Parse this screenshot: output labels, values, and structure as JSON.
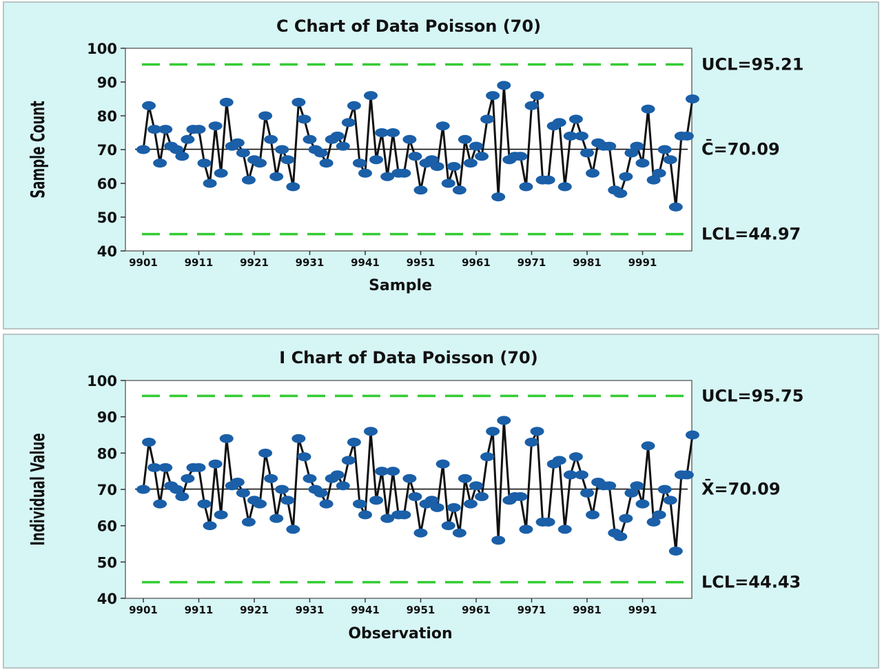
{
  "chart_data": [
    {
      "type": "line",
      "title": "C Chart of Data Poisson (70)",
      "xlabel": "Sample",
      "ylabel": "Sample Count",
      "x_tick_labels": [
        "9901",
        "9911",
        "9921",
        "9931",
        "9941",
        "9951",
        "9961",
        "9971",
        "9981",
        "9991"
      ],
      "x_start": 9901,
      "ylim": [
        40,
        100
      ],
      "y_ticks": [
        40,
        50,
        60,
        70,
        80,
        90,
        100
      ],
      "center_label": "C̄=70.09",
      "center": 70.09,
      "ucl_label": "UCL=95.21",
      "ucl": 95.21,
      "lcl_label": "LCL=44.97",
      "lcl": 44.97,
      "series": [
        {
          "values": [
            70,
            83,
            76,
            66,
            76,
            71,
            70,
            68,
            73,
            76,
            76,
            66,
            60,
            77,
            63,
            84,
            71,
            72,
            69,
            61,
            67,
            66,
            80,
            73,
            62,
            70,
            67,
            59,
            84,
            79,
            73,
            70,
            69,
            66,
            73,
            74,
            71,
            78,
            83,
            66,
            63,
            86,
            67,
            75,
            62,
            75,
            63,
            63,
            73,
            68,
            58,
            66,
            67,
            65,
            77,
            60,
            65,
            58,
            73,
            66,
            71,
            68,
            79,
            86,
            56,
            89,
            67,
            68,
            68,
            59,
            83,
            86,
            61,
            61,
            77,
            78,
            59,
            74,
            79,
            74,
            69,
            63,
            72,
            71,
            71,
            58,
            57,
            62,
            69,
            71,
            66,
            82,
            61,
            63,
            70,
            67,
            53,
            74,
            74,
            85
          ]
        }
      ],
      "colors": {
        "line": "#111111",
        "point": "#1a5fa8",
        "limit": "#33cc33",
        "background": "#d6f5f5",
        "plot_area": "#ffffff"
      }
    },
    {
      "type": "line",
      "title": "I Chart of Data Poisson (70)",
      "xlabel": "Observation",
      "ylabel": "Individual Value",
      "x_tick_labels": [
        "9901",
        "9911",
        "9921",
        "9931",
        "9941",
        "9951",
        "9961",
        "9971",
        "9981",
        "9991"
      ],
      "x_start": 9901,
      "ylim": [
        40,
        100
      ],
      "y_ticks": [
        40,
        50,
        60,
        70,
        80,
        90,
        100
      ],
      "center_label": "X̄=70.09",
      "center": 70.09,
      "ucl_label": "UCL=95.75",
      "ucl": 95.75,
      "lcl_label": "LCL=44.43",
      "lcl": 44.43,
      "series": [
        {
          "values": [
            70,
            83,
            76,
            66,
            76,
            71,
            70,
            68,
            73,
            76,
            76,
            66,
            60,
            77,
            63,
            84,
            71,
            72,
            69,
            61,
            67,
            66,
            80,
            73,
            62,
            70,
            67,
            59,
            84,
            79,
            73,
            70,
            69,
            66,
            73,
            74,
            71,
            78,
            83,
            66,
            63,
            86,
            67,
            75,
            62,
            75,
            63,
            63,
            73,
            68,
            58,
            66,
            67,
            65,
            77,
            60,
            65,
            58,
            73,
            66,
            71,
            68,
            79,
            86,
            56,
            89,
            67,
            68,
            68,
            59,
            83,
            86,
            61,
            61,
            77,
            78,
            59,
            74,
            79,
            74,
            69,
            63,
            72,
            71,
            71,
            58,
            57,
            62,
            69,
            71,
            66,
            82,
            61,
            63,
            70,
            67,
            53,
            74,
            74,
            85
          ]
        }
      ],
      "colors": {
        "line": "#111111",
        "point": "#1a5fa8",
        "limit": "#33cc33",
        "background": "#d6f5f5",
        "plot_area": "#ffffff"
      }
    }
  ]
}
